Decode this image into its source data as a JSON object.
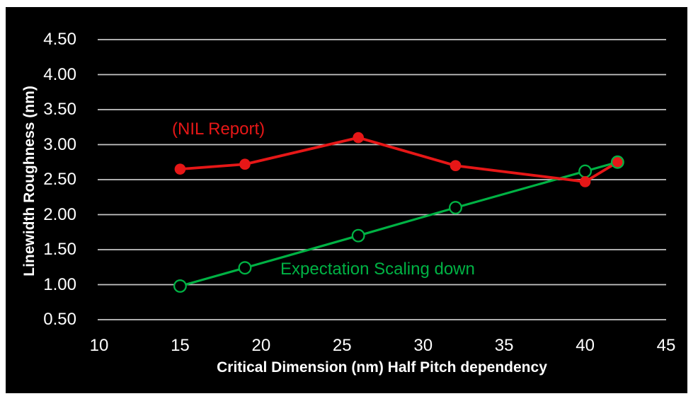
{
  "page": {
    "background": "#ffffff",
    "panel_background": "#000000"
  },
  "chart_data": {
    "type": "line",
    "title": "",
    "xlabel": "Critical Dimension (nm) Half Pitch dependency",
    "ylabel": "Linewidth Roughness (nm)",
    "x_ticks": [
      "10",
      "15",
      "20",
      "25",
      "30",
      "35",
      "40",
      "45"
    ],
    "y_ticks": [
      "0.50",
      "1.00",
      "1.50",
      "2.00",
      "2.50",
      "3.00",
      "3.50",
      "4.00",
      "4.50"
    ],
    "xlim": [
      9.9,
      45.0
    ],
    "ylim": [
      0.5,
      4.5
    ],
    "grid": "horizontal-only",
    "gridline_color": "#c6c6c6",
    "text_color": "#ffffff",
    "legend_position": "inline-annotations",
    "series": [
      {
        "name": "(NIL Report)",
        "color": "#e61717",
        "marker": "filled-circle",
        "x": [
          15,
          19,
          26,
          32,
          40,
          42
        ],
        "y": [
          2.65,
          2.72,
          3.1,
          2.7,
          2.47,
          2.75
        ]
      },
      {
        "name": "Expectation Scaling down",
        "color": "#00b244",
        "marker": "open-circle",
        "x": [
          15,
          19,
          26,
          32,
          40,
          42
        ],
        "y": [
          0.98,
          1.24,
          1.7,
          2.1,
          2.62,
          2.75
        ]
      }
    ],
    "annotations": [
      {
        "text": "(NIL Report)",
        "color": "#e61717"
      },
      {
        "text": "Expectation Scaling down",
        "color": "#00b244"
      }
    ]
  }
}
